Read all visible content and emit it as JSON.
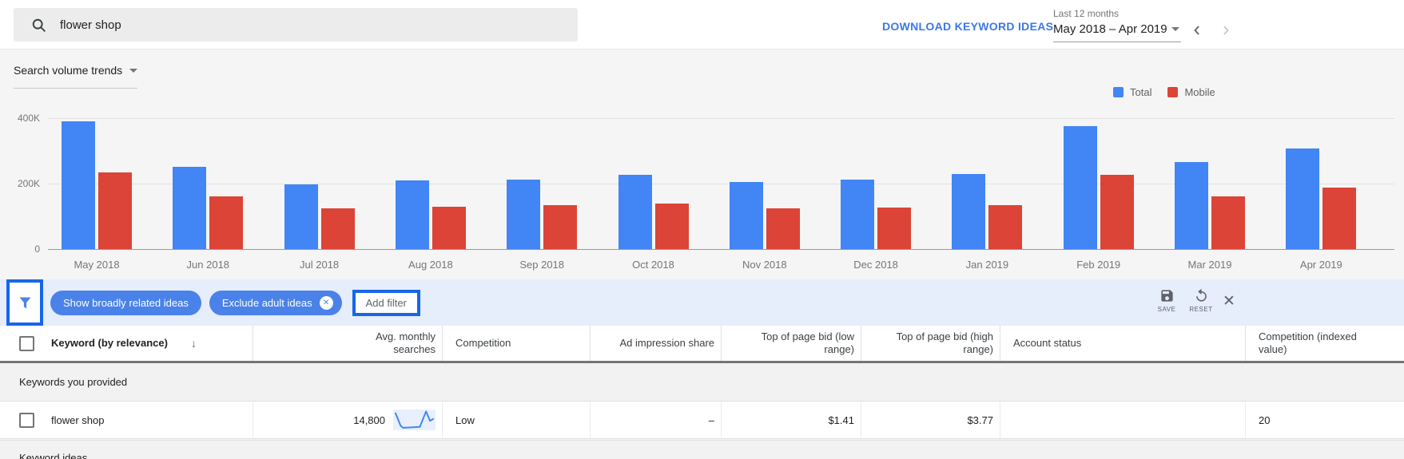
{
  "topbar": {
    "search_value": "flower shop",
    "download_label": "DOWNLOAD KEYWORD IDEAS",
    "period_label": "Last 12 months",
    "period_value": "May 2018 – Apr 2019"
  },
  "chart_section": {
    "title": "Search volume trends"
  },
  "chart_data": {
    "type": "bar",
    "title": "Search volume trends",
    "categories": [
      "May 2018",
      "Jun 2018",
      "Jul 2018",
      "Aug 2018",
      "Sep 2018",
      "Oct 2018",
      "Nov 2018",
      "Dec 2018",
      "Jan 2019",
      "Feb 2019",
      "Mar 2019",
      "Apr 2019"
    ],
    "series": [
      {
        "name": "Total",
        "color": "#4285f4",
        "values": [
          390000,
          250000,
          198000,
          210000,
          213000,
          227000,
          206000,
          212000,
          230000,
          375000,
          266000,
          307000
        ]
      },
      {
        "name": "Mobile",
        "color": "#db4437",
        "values": [
          233000,
          160000,
          125000,
          130000,
          135000,
          139000,
          125000,
          128000,
          135000,
          228000,
          162000,
          187000
        ]
      }
    ],
    "ylim": [
      0,
      400000
    ],
    "yticks": [
      "400K",
      "200K",
      "0"
    ],
    "grid": true,
    "legend_position": "top-right"
  },
  "filter_bar": {
    "chip_broadly": "Show broadly related ideas",
    "chip_exclude": "Exclude adult ideas",
    "add_filter": "Add filter",
    "save": "SAVE",
    "reset": "RESET",
    "colors": {
      "chip_blue": "#4a82e9",
      "highlight_blue": "#1766e8",
      "bar_background": "#e6edfb"
    }
  },
  "table": {
    "columns": [
      "Keyword (by relevance)",
      "Avg. monthly searches",
      "Competition",
      "Ad impression share",
      "Top of page bid (low range)",
      "Top of page bid (high range)",
      "Account status",
      "Competition (indexed value)"
    ],
    "section1": "Keywords you provided",
    "row": {
      "keyword": "flower shop",
      "avg_monthly_searches": "14,800",
      "competition": "Low",
      "ad_impression_share": "–",
      "top_bid_low": "$1.41",
      "top_bid_high": "$3.77",
      "account_status": "",
      "competition_indexed": "20",
      "sparkline": [
        [
          0.02,
          0.12
        ],
        [
          0.15,
          0.83
        ],
        [
          0.21,
          0.95
        ],
        [
          0.64,
          0.9
        ],
        [
          0.8,
          0.02
        ],
        [
          0.9,
          0.55
        ],
        [
          0.98,
          0.45
        ]
      ]
    },
    "section2": "Keyword ideas"
  }
}
